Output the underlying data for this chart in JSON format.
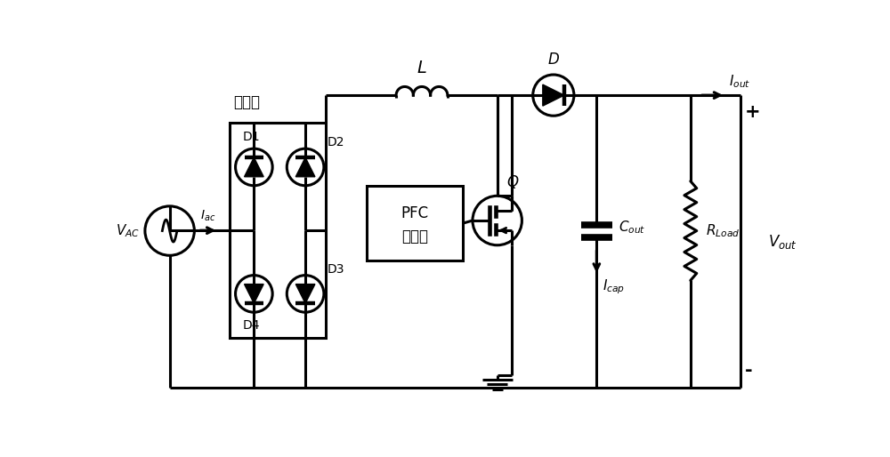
{
  "bg_color": "#ffffff",
  "line_color": "#000000",
  "line_width": 2.2,
  "fig_width": 10.0,
  "fig_height": 5.14,
  "labels": {
    "L": "L",
    "D_diode": "D",
    "Q_mosfet": "Q",
    "Cout": "C",
    "Cout_sub": "out",
    "Rload": "R",
    "Rload_sub": "Load",
    "Vout": "V",
    "Vout_sub": "out",
    "Vac": "V",
    "Vac_sub": "AC",
    "Iac": "I",
    "Iac_sub": "ac",
    "Iout": "I",
    "Iout_sub": "out",
    "Icap": "I",
    "Icap_sub": "cap",
    "D1": "D1",
    "D2": "D2",
    "D3": "D3",
    "D4": "D4",
    "bridge": "整流桥",
    "pfc_line1": "PFC",
    "pfc_line2": "控制器",
    "plus": "+",
    "minus": "-"
  }
}
